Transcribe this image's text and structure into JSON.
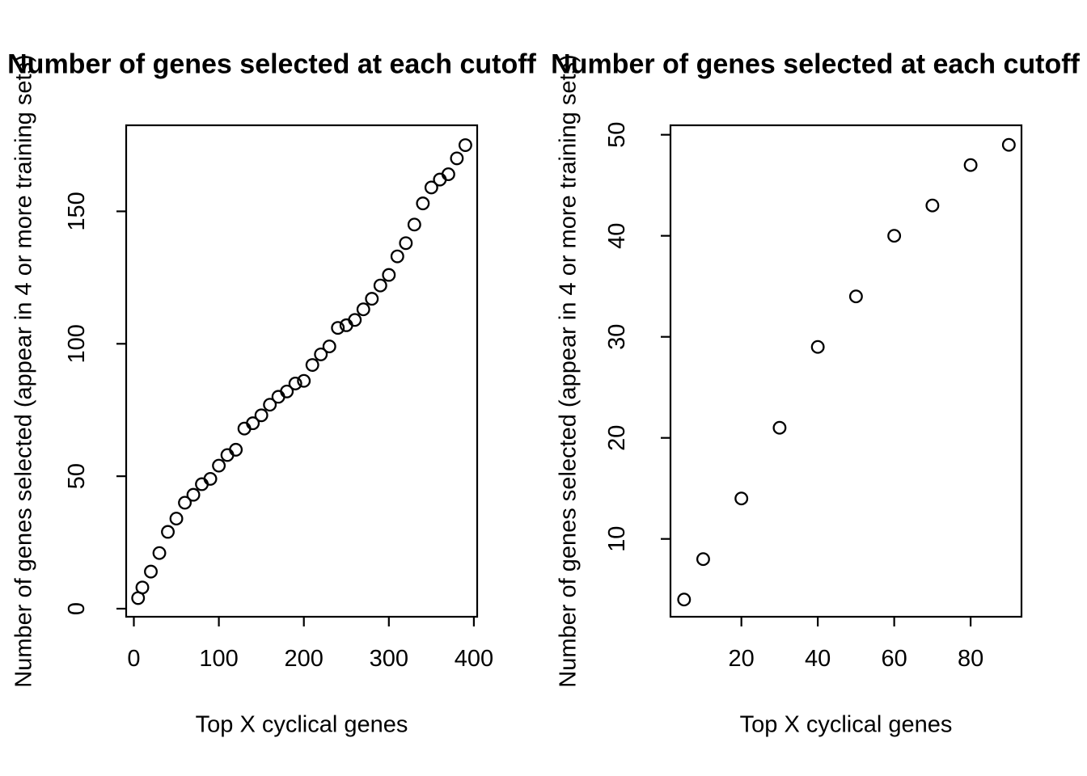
{
  "titles": {
    "left": "Number of genes selected at each cutoff",
    "right": "Number of genes selected at each cutoff"
  },
  "axis_labels": {
    "x": "Top X cyclical genes",
    "y": "Number of genes selected (appear in 4 or more training sets)"
  },
  "colors": {
    "foreground": "#000000",
    "background": "#ffffff"
  },
  "chart_data": [
    {
      "type": "scatter",
      "title": "Number of genes selected at each cutoff",
      "xlabel": "Top X cyclical genes",
      "ylabel": "Number of genes selected (appear in 4 or more training sets)",
      "marker": "open-circle",
      "grid": false,
      "xlim": [
        -10.4,
        405.4
      ],
      "ylim": [
        -2.9,
        182.9
      ],
      "x_ticks": [
        0,
        100,
        200,
        300,
        400
      ],
      "y_ticks": [
        0,
        50,
        100,
        150
      ],
      "x": [
        5,
        10,
        20,
        30,
        40,
        50,
        60,
        70,
        80,
        90,
        100,
        110,
        120,
        130,
        140,
        150,
        160,
        170,
        180,
        190,
        200,
        210,
        220,
        230,
        240,
        250,
        260,
        270,
        280,
        290,
        300,
        310,
        320,
        330,
        340,
        350,
        360,
        370,
        380,
        390
      ],
      "y": [
        4,
        8,
        14,
        21,
        29,
        34,
        40,
        43,
        47,
        49,
        54,
        58,
        60,
        68,
        70,
        73,
        77,
        80,
        82,
        85,
        86,
        92,
        96,
        99,
        106,
        107,
        109,
        113,
        117,
        122,
        126,
        133,
        138,
        145,
        153,
        159,
        162,
        164,
        170,
        175
      ]
    },
    {
      "type": "scatter",
      "title": "Number of genes selected at each cutoff",
      "xlabel": "Top X cyclical genes",
      "ylabel": "Number of genes selected (appear in 4 or more training sets)",
      "marker": "open-circle",
      "grid": false,
      "xlim": [
        1.6,
        93.4
      ],
      "ylim": [
        2.2,
        50.8
      ],
      "x_ticks": [
        20,
        40,
        60,
        80
      ],
      "y_ticks": [
        10,
        20,
        30,
        40,
        50
      ],
      "x": [
        5,
        10,
        20,
        30,
        40,
        50,
        60,
        70,
        80,
        90
      ],
      "y": [
        4,
        8,
        14,
        21,
        29,
        34,
        40,
        43,
        47,
        49
      ]
    }
  ]
}
